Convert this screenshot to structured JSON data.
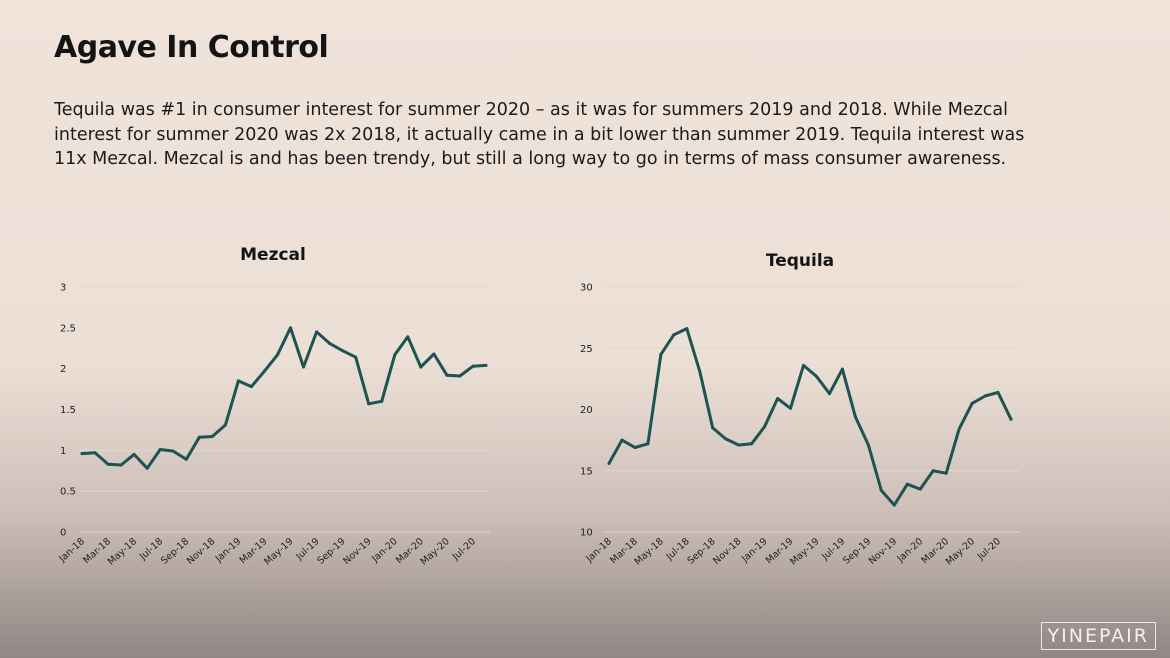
{
  "slide": {
    "title": "Agave In Control",
    "body": "Tequila was #1 in consumer interest for summer 2020 – as it was for summers 2019 and 2018. While Mezcal interest for summer 2020 was 2x 2018, it actually came in a bit lower than summer 2019. Tequila interest was 11x Mezcal. Mezcal is and has been trendy, but still a long way to go in terms of mass consumer awareness.",
    "logo_text": "YINEPAIR"
  },
  "chart_data": [
    {
      "type": "line",
      "title": "Mezcal",
      "xlabel": "",
      "ylabel": "",
      "ylim": [
        0,
        3
      ],
      "yticks": [
        "0",
        "0.5",
        "1",
        "1.5",
        "2",
        "2.5",
        "3"
      ],
      "grid": true,
      "color": "#1d5350",
      "x": [
        "Jan-18",
        "Feb-18",
        "Mar-18",
        "Apr-18",
        "May-18",
        "Jun-18",
        "Jul-18",
        "Aug-18",
        "Sep-18",
        "Oct-18",
        "Nov-18",
        "Dec-18",
        "Jan-19",
        "Feb-19",
        "Mar-19",
        "Apr-19",
        "May-19",
        "Jun-19",
        "Jul-19",
        "Aug-19",
        "Sep-19",
        "Oct-19",
        "Nov-19",
        "Dec-19",
        "Jan-20",
        "Feb-20",
        "Mar-20",
        "Apr-20",
        "May-20",
        "Jun-20",
        "Jul-20",
        "Aug-20"
      ],
      "xtick_labels": [
        "Jan-18",
        "Mar-18",
        "May-18",
        "Jul-18",
        "Sep-18",
        "Nov-18",
        "Jan-19",
        "Mar-19",
        "May-19",
        "Jul-19",
        "Sep-19",
        "Nov-19",
        "Jan-20",
        "Mar-20",
        "May-20",
        "Jul-20"
      ],
      "values": [
        0.96,
        0.97,
        0.83,
        0.82,
        0.95,
        0.78,
        1.01,
        0.99,
        0.89,
        1.16,
        1.17,
        1.31,
        1.85,
        1.78,
        1.97,
        2.17,
        2.5,
        2.02,
        2.45,
        2.31,
        2.22,
        2.14,
        1.57,
        1.6,
        2.17,
        2.39,
        2.02,
        2.18,
        1.92,
        1.91,
        2.03,
        2.04
      ]
    },
    {
      "type": "line",
      "title": "Tequila",
      "xlabel": "",
      "ylabel": "",
      "ylim": [
        10,
        30
      ],
      "yticks": [
        "10",
        "15",
        "20",
        "25",
        "30"
      ],
      "grid": true,
      "color": "#1d5350",
      "x": [
        "Jan-18",
        "Feb-18",
        "Mar-18",
        "Apr-18",
        "May-18",
        "Jun-18",
        "Jul-18",
        "Aug-18",
        "Sep-18",
        "Oct-18",
        "Nov-18",
        "Dec-18",
        "Jan-19",
        "Feb-19",
        "Mar-19",
        "Apr-19",
        "May-19",
        "Jun-19",
        "Jul-19",
        "Aug-19",
        "Sep-19",
        "Oct-19",
        "Nov-19",
        "Dec-19",
        "Jan-20",
        "Feb-20",
        "Mar-20",
        "Apr-20",
        "May-20",
        "Jun-20",
        "Jul-20",
        "Aug-20"
      ],
      "xtick_labels": [
        "Jan-18",
        "Mar-18",
        "May-18",
        "Jul-18",
        "Sep-18",
        "Nov-18",
        "Jan-19",
        "Mar-19",
        "May-19",
        "Jul-19",
        "Sep-19",
        "Nov-19",
        "Jan-20",
        "Mar-20",
        "May-20",
        "Jul-20"
      ],
      "values": [
        15.6,
        17.5,
        16.9,
        17.2,
        24.5,
        26.1,
        26.6,
        23.1,
        18.5,
        17.6,
        17.1,
        17.2,
        18.6,
        20.9,
        20.1,
        23.6,
        22.7,
        21.3,
        23.3,
        19.4,
        17.1,
        13.4,
        12.2,
        13.9,
        13.5,
        15.0,
        14.8,
        18.4,
        20.5,
        21.1,
        21.4,
        19.2
      ]
    }
  ]
}
